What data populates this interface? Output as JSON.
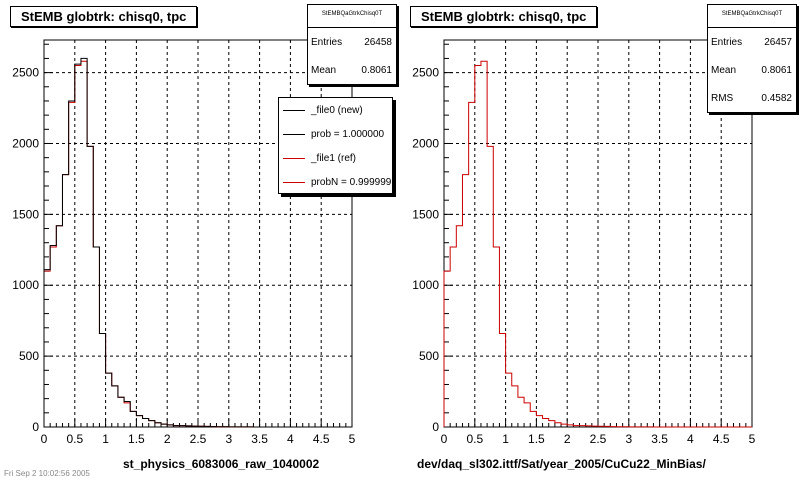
{
  "chart_data": [
    {
      "type": "histogram",
      "title": "StEMB globtrk: chisq0, tpc",
      "xlabel": "st_physics_6083006_raw_1040002",
      "ylabel": "",
      "xlim": [
        0,
        5
      ],
      "ylim": [
        0,
        2730
      ],
      "xticks": [
        "0",
        "0.5",
        "1",
        "1.5",
        "2",
        "2.5",
        "3",
        "3.5",
        "4",
        "4.5",
        "5"
      ],
      "yticks": [
        "0",
        "500",
        "1000",
        "1500",
        "2000",
        "2500"
      ],
      "grid": true,
      "bin_width": 0.1,
      "series": [
        {
          "name": "_file0 (new)",
          "color": "#000000",
          "values": [
            1110,
            1280,
            1420,
            1780,
            2300,
            2560,
            2600,
            1980,
            1270,
            660,
            380,
            290,
            210,
            180,
            110,
            80,
            60,
            45,
            30,
            20,
            15,
            10,
            10,
            8,
            6,
            5,
            4,
            3,
            2,
            2,
            1,
            1,
            1,
            1,
            0,
            0,
            0,
            0,
            0,
            0,
            0,
            0,
            0,
            0,
            0,
            0,
            0,
            0,
            0,
            0
          ]
        },
        {
          "name": "_file1 (ref)",
          "color": "#cc0000",
          "values": [
            1100,
            1270,
            1420,
            1780,
            2290,
            2550,
            2580,
            1980,
            1270,
            660,
            380,
            290,
            210,
            170,
            110,
            80,
            60,
            45,
            30,
            20,
            15,
            10,
            10,
            8,
            6,
            5,
            4,
            3,
            2,
            2,
            1,
            1,
            1,
            1,
            0,
            0,
            0,
            0,
            0,
            0,
            0,
            0,
            0,
            0,
            0,
            0,
            0,
            0,
            0,
            0
          ]
        }
      ],
      "stats": {
        "header": "StEMBQaGtrkChisq0T",
        "entries_label": "Entries",
        "entries": "26458",
        "mean_label": "Mean",
        "mean": "0.8061"
      },
      "legend": [
        {
          "label": "_file0 (new)",
          "color": "#000000"
        },
        {
          "label": "prob = 1.000000",
          "color": "#000000"
        },
        {
          "label": "_file1 (ref)",
          "color": "#cc0000"
        },
        {
          "label": "probN = 0.999999",
          "color": "#cc0000"
        }
      ]
    },
    {
      "type": "histogram",
      "title": "StEMB globtrk: chisq0, tpc",
      "xlabel": "dev/daq_sl302.ittf/Sat/year_2005/CuCu22_MinBias/",
      "ylabel": "",
      "xlim": [
        0,
        5
      ],
      "ylim": [
        0,
        2730
      ],
      "xticks": [
        "0",
        "0.5",
        "1",
        "1.5",
        "2",
        "2.5",
        "3",
        "3.5",
        "4",
        "4.5",
        "5"
      ],
      "yticks": [
        "0",
        "500",
        "1000",
        "1500",
        "2000",
        "2500"
      ],
      "grid": true,
      "bin_width": 0.1,
      "series": [
        {
          "name": "",
          "color": "#cc0000",
          "values": [
            1100,
            1270,
            1420,
            1780,
            2290,
            2550,
            2580,
            1980,
            1270,
            660,
            380,
            290,
            210,
            170,
            110,
            80,
            60,
            45,
            30,
            20,
            15,
            10,
            10,
            8,
            6,
            5,
            4,
            3,
            2,
            2,
            1,
            1,
            1,
            1,
            0,
            0,
            0,
            0,
            0,
            0,
            0,
            0,
            0,
            0,
            0,
            0,
            0,
            0,
            0,
            0
          ]
        }
      ],
      "stats": {
        "header": "StEMBQaGtrkChisq0T",
        "entries_label": "Entries",
        "entries": "26457",
        "mean_label": "Mean",
        "mean": "0.8061",
        "rms_label": "RMS",
        "rms": "0.4582"
      }
    }
  ],
  "footer": "Fri Sep 2 10:02:56 2005"
}
